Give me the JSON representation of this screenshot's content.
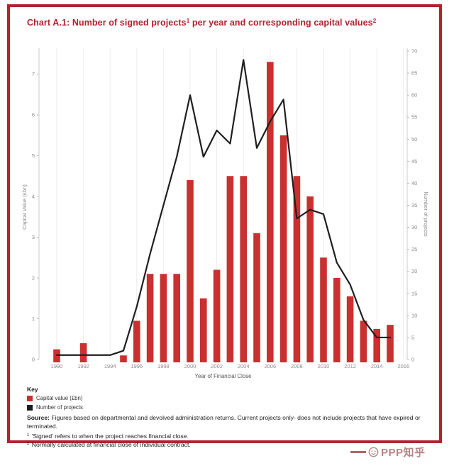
{
  "frame": {
    "border_color": "#b02331"
  },
  "title": {
    "prefix": "Chart A.1: Number of signed projects",
    "sup1": "1",
    "mid": " per year and corresponding capital values",
    "sup2": "2",
    "color": "#b02331"
  },
  "chart_data": {
    "type": "combo-bar-line",
    "x": [
      1990,
      1991,
      1992,
      1993,
      1994,
      1995,
      1996,
      1997,
      1998,
      1999,
      2000,
      2001,
      2002,
      2003,
      2004,
      2005,
      2006,
      2007,
      2008,
      2009,
      2010,
      2011,
      2012,
      2013,
      2014,
      2015
    ],
    "series": [
      {
        "name": "Capital value (£bn)",
        "type": "bar",
        "axis": "left",
        "color": "#c9302f",
        "values": [
          0.25,
          0,
          0.4,
          0,
          0,
          0.1,
          0.95,
          2.1,
          2.1,
          2.1,
          4.4,
          1.5,
          2.2,
          4.5,
          4.5,
          3.1,
          7.3,
          5.5,
          4.5,
          4.0,
          2.5,
          2.0,
          1.55,
          0.95,
          0.75,
          0.85
        ]
      },
      {
        "name": "Number of projects",
        "type": "line",
        "axis": "right",
        "color": "#1f1f1f",
        "values": [
          1,
          1,
          1,
          1,
          1,
          2,
          12,
          24,
          35,
          46,
          60,
          46,
          52,
          49,
          68,
          48,
          54,
          59,
          32,
          34,
          33,
          22,
          17,
          9,
          5,
          5
        ]
      }
    ],
    "left_axis": {
      "label": "Capital Value (£bn)",
      "min": 0,
      "max": 7,
      "tick_step": 1
    },
    "right_axis": {
      "label": "Number of projects",
      "min": 0,
      "max": 70,
      "tick_step": 5
    },
    "x_axis": {
      "label": "Year of Financial Close",
      "tick_labels": [
        1990,
        1992,
        1994,
        1996,
        1998,
        2000,
        2002,
        2004,
        2006,
        2008,
        2010,
        2012,
        2014,
        2016
      ]
    },
    "grid": "vertical-light"
  },
  "key": {
    "heading": "Key",
    "items": [
      {
        "label": "Capital value (£bn)",
        "color": "#c9302f"
      },
      {
        "label": "Number of projects",
        "color": "#1c1c1c"
      }
    ]
  },
  "source": {
    "label": "Source:",
    "text": " Figures based on departmental and devolved administration returns. Current projects only- does not include projects that have expired or terminated."
  },
  "footnotes": [
    {
      "marker": "1",
      "text": " 'Signed' refers to when the project reaches financial close."
    },
    {
      "marker": "2",
      "text": " Normally calculated at financial close of individual contract."
    }
  ],
  "watermark": {
    "text": "PPP知乎",
    "color": "#a97070"
  }
}
